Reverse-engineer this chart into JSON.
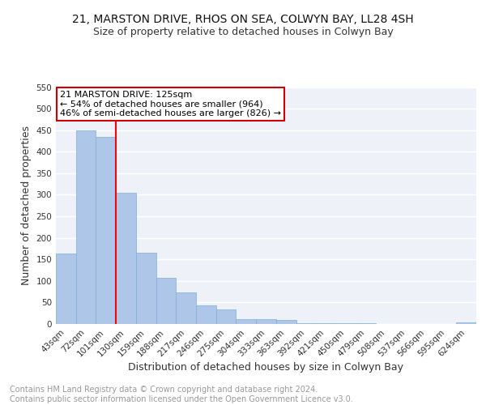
{
  "title1": "21, MARSTON DRIVE, RHOS ON SEA, COLWYN BAY, LL28 4SH",
  "title2": "Size of property relative to detached houses in Colwyn Bay",
  "xlabel": "Distribution of detached houses by size in Colwyn Bay",
  "ylabel": "Number of detached properties",
  "categories": [
    "43sqm",
    "72sqm",
    "101sqm",
    "130sqm",
    "159sqm",
    "188sqm",
    "217sqm",
    "246sqm",
    "275sqm",
    "304sqm",
    "333sqm",
    "363sqm",
    "392sqm",
    "421sqm",
    "450sqm",
    "479sqm",
    "508sqm",
    "537sqm",
    "566sqm",
    "595sqm",
    "624sqm"
  ],
  "values": [
    163,
    450,
    435,
    305,
    165,
    107,
    73,
    44,
    33,
    12,
    11,
    9,
    2,
    1,
    1,
    1,
    0,
    0,
    0,
    0,
    4
  ],
  "bar_color": "#aec6e8",
  "bar_edge_color": "#7fafd4",
  "property_line_x": 2.5,
  "annotation_line1": "21 MARSTON DRIVE: 125sqm",
  "annotation_line2": "← 54% of detached houses are smaller (964)",
  "annotation_line3": "46% of semi-detached houses are larger (826) →",
  "annotation_box_color": "#cc0000",
  "ylim": [
    0,
    550
  ],
  "yticks": [
    0,
    50,
    100,
    150,
    200,
    250,
    300,
    350,
    400,
    450,
    500,
    550
  ],
  "footer": "Contains HM Land Registry data © Crown copyright and database right 2024.\nContains public sector information licensed under the Open Government Licence v3.0.",
  "bg_color": "#eef2f8",
  "grid_color": "#ffffff",
  "title_fontsize": 10,
  "subtitle_fontsize": 9,
  "axis_label_fontsize": 9,
  "tick_fontsize": 7.5,
  "footer_fontsize": 7,
  "ann_fontsize": 8
}
